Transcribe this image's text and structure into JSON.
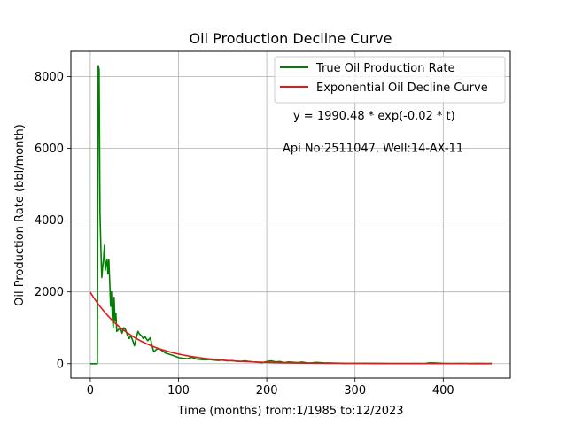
{
  "chart_data": {
    "type": "line",
    "title": "Oil Production Decline Curve",
    "xlabel": "Time (months) from:1/1985 to:12/2023",
    "ylabel": "Oil Production Rate (bbl/month)",
    "xlim": [
      -22,
      476
    ],
    "ylim": [
      -400,
      8700
    ],
    "xticks": [
      0,
      100,
      200,
      300,
      400
    ],
    "yticks": [
      0,
      2000,
      4000,
      6000,
      8000
    ],
    "grid": true,
    "legend": "top-right",
    "annotations": [
      {
        "text": "y = 1990.48 * exp(-0.02 * t)",
        "x": 230,
        "y": 6800
      },
      {
        "text": "Api No:2511047, Well:14-AX-11",
        "x": 218,
        "y": 5900
      }
    ],
    "series": [
      {
        "name": "True Oil Production Rate",
        "color": "#008000",
        "points": [
          [
            0,
            0
          ],
          [
            8,
            0
          ],
          [
            9,
            8300
          ],
          [
            10,
            8200
          ],
          [
            11,
            4200
          ],
          [
            12,
            3200
          ],
          [
            13,
            2400
          ],
          [
            14,
            2700
          ],
          [
            15,
            2900
          ],
          [
            16,
            3300
          ],
          [
            17,
            2600
          ],
          [
            18,
            2800
          ],
          [
            19,
            2900
          ],
          [
            20,
            2500
          ],
          [
            21,
            2900
          ],
          [
            22,
            2300
          ],
          [
            23,
            1600
          ],
          [
            24,
            2000
          ],
          [
            25,
            1300
          ],
          [
            26,
            1000
          ],
          [
            27,
            1850
          ],
          [
            28,
            1200
          ],
          [
            29,
            1400
          ],
          [
            30,
            900
          ],
          [
            32,
            950
          ],
          [
            34,
            1000
          ],
          [
            36,
            850
          ],
          [
            38,
            1000
          ],
          [
            40,
            950
          ],
          [
            42,
            800
          ],
          [
            44,
            700
          ],
          [
            46,
            780
          ],
          [
            48,
            650
          ],
          [
            50,
            500
          ],
          [
            52,
            700
          ],
          [
            54,
            900
          ],
          [
            56,
            820
          ],
          [
            58,
            780
          ],
          [
            60,
            700
          ],
          [
            62,
            750
          ],
          [
            65,
            640
          ],
          [
            68,
            720
          ],
          [
            70,
            500
          ],
          [
            72,
            330
          ],
          [
            75,
            400
          ],
          [
            78,
            420
          ],
          [
            82,
            350
          ],
          [
            85,
            300
          ],
          [
            90,
            260
          ],
          [
            95,
            220
          ],
          [
            100,
            170
          ],
          [
            105,
            150
          ],
          [
            110,
            140
          ],
          [
            115,
            180
          ],
          [
            120,
            130
          ],
          [
            125,
            120
          ],
          [
            130,
            110
          ],
          [
            135,
            120
          ],
          [
            140,
            100
          ],
          [
            145,
            90
          ],
          [
            150,
            100
          ],
          [
            155,
            80
          ],
          [
            160,
            90
          ],
          [
            165,
            70
          ],
          [
            170,
            60
          ],
          [
            175,
            80
          ],
          [
            180,
            60
          ],
          [
            185,
            50
          ],
          [
            190,
            40
          ],
          [
            195,
            30
          ],
          [
            200,
            60
          ],
          [
            205,
            80
          ],
          [
            210,
            50
          ],
          [
            215,
            60
          ],
          [
            220,
            30
          ],
          [
            225,
            50
          ],
          [
            230,
            40
          ],
          [
            235,
            30
          ],
          [
            240,
            45
          ],
          [
            245,
            25
          ],
          [
            250,
            20
          ],
          [
            255,
            35
          ],
          [
            260,
            30
          ],
          [
            265,
            20
          ],
          [
            270,
            20
          ],
          [
            280,
            15
          ],
          [
            290,
            10
          ],
          [
            300,
            10
          ],
          [
            310,
            12
          ],
          [
            320,
            8
          ],
          [
            330,
            10
          ],
          [
            340,
            5
          ],
          [
            350,
            6
          ],
          [
            360,
            5
          ],
          [
            370,
            5
          ],
          [
            380,
            10
          ],
          [
            385,
            25
          ],
          [
            390,
            20
          ],
          [
            395,
            15
          ],
          [
            400,
            10
          ],
          [
            410,
            5
          ],
          [
            420,
            10
          ],
          [
            430,
            5
          ],
          [
            440,
            8
          ],
          [
            450,
            5
          ],
          [
            455,
            10
          ]
        ]
      },
      {
        "name": "Exponential Oil Decline Curve",
        "color": "#e31a1c",
        "function": {
          "a": 1990.48,
          "b": -0.02,
          "x_start": 0,
          "x_end": 455
        }
      }
    ]
  }
}
